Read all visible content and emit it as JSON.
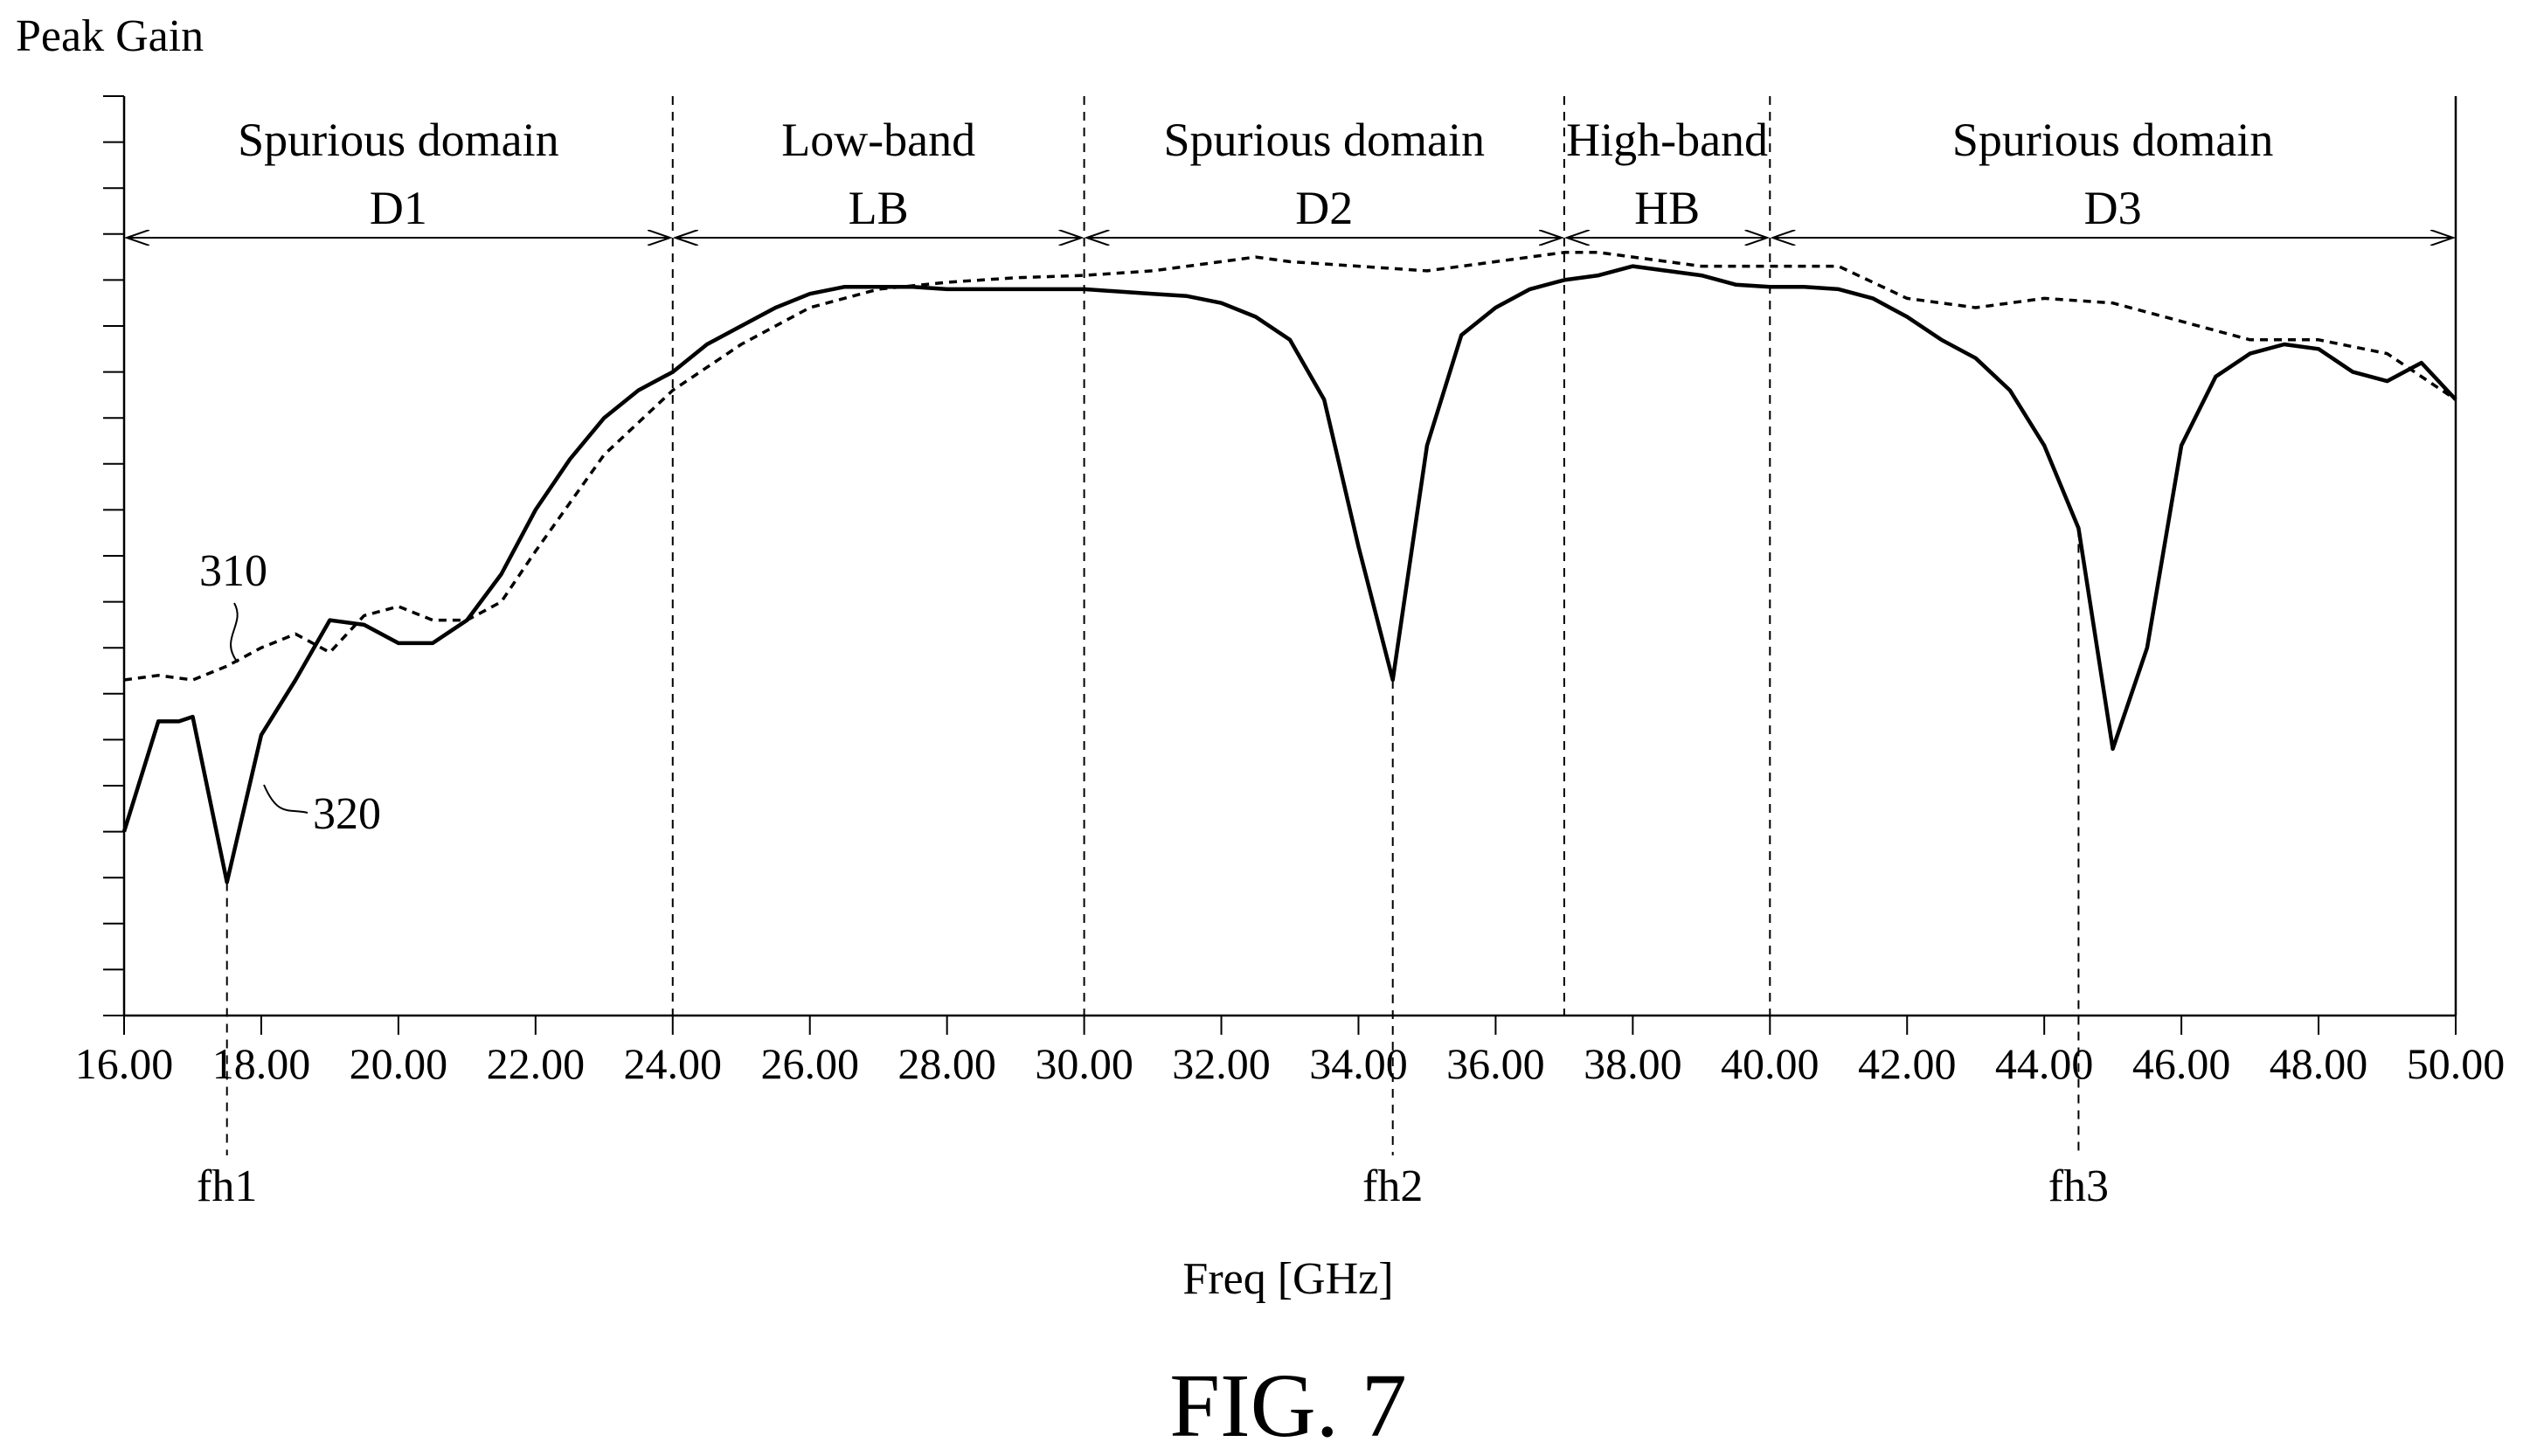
{
  "page_title": "",
  "figure_label": "FIG. 7",
  "chart_data": {
    "type": "line",
    "ylabel": "Peak Gain",
    "xlabel": "Freq [GHz]",
    "xlim": [
      16,
      50
    ],
    "ylim": [
      0,
      20
    ],
    "grid": false,
    "x_ticks": [
      16,
      18,
      20,
      22,
      24,
      26,
      28,
      30,
      32,
      34,
      36,
      38,
      40,
      42,
      44,
      46,
      48,
      50
    ],
    "x_tick_labels": [
      "16.00",
      "18.00",
      "20.00",
      "22.00",
      "24.00",
      "26.00",
      "28.00",
      "30.00",
      "32.00",
      "34.00",
      "36.00",
      "38.00",
      "40.00",
      "42.00",
      "44.00",
      "46.00",
      "48.00",
      "50.00"
    ],
    "y_minor_tick_count": 21,
    "regions": [
      {
        "name": "Spurious domain",
        "code": "D1",
        "x_start": 16,
        "x_end": 24
      },
      {
        "name": "Low-band",
        "code": "LB",
        "x_start": 24,
        "x_end": 30
      },
      {
        "name": "Spurious domain",
        "code": "D2",
        "x_start": 30,
        "x_end": 37
      },
      {
        "name": "High-band",
        "code": "HB",
        "x_start": 37,
        "x_end": 40
      },
      {
        "name": "Spurious domain",
        "code": "D3",
        "x_start": 40,
        "x_end": 50
      }
    ],
    "region_boundaries": [
      24,
      30,
      37,
      40
    ],
    "markers": [
      {
        "label": "fh1",
        "x": 17.5
      },
      {
        "label": "fh2",
        "x": 34.5
      },
      {
        "label": "fh3",
        "x": 44.5
      }
    ],
    "series": [
      {
        "name": "310",
        "style": "dashed",
        "x": [
          16,
          16.5,
          17,
          17.5,
          18,
          18.5,
          19,
          19.5,
          20,
          20.5,
          21,
          21.5,
          22,
          23,
          24,
          25,
          26,
          27,
          28,
          29,
          30,
          31,
          32,
          32.5,
          33,
          34,
          35,
          36,
          37,
          37.5,
          38,
          39,
          40,
          41,
          42,
          43,
          44,
          45,
          46,
          47,
          48,
          49,
          50
        ],
        "y": [
          7.3,
          7.4,
          7.3,
          7.6,
          8.0,
          8.3,
          7.9,
          8.7,
          8.9,
          8.6,
          8.6,
          9.0,
          10.1,
          12.2,
          13.6,
          14.6,
          15.4,
          15.8,
          15.95,
          16.05,
          16.1,
          16.2,
          16.4,
          16.5,
          16.4,
          16.3,
          16.2,
          16.4,
          16.6,
          16.6,
          16.5,
          16.3,
          16.3,
          16.3,
          15.6,
          15.4,
          15.6,
          15.5,
          15.1,
          14.7,
          14.7,
          14.4,
          13.4
        ]
      },
      {
        "name": "320",
        "style": "solid",
        "x": [
          16,
          16.5,
          16.8,
          17,
          17.5,
          18,
          18.5,
          19,
          19.5,
          20,
          20.5,
          21,
          21.5,
          22,
          22.5,
          23,
          23.5,
          24,
          24.5,
          25,
          25.5,
          26,
          26.5,
          27,
          27.5,
          28,
          29,
          30,
          31,
          31.5,
          32,
          32.5,
          33,
          33.5,
          34,
          34.5,
          35,
          35.5,
          36,
          36.5,
          37,
          37.5,
          38,
          38.5,
          39,
          39.5,
          40,
          40.5,
          41,
          41.5,
          42,
          42.5,
          43,
          43.5,
          44,
          44.5,
          45,
          45.5,
          46,
          46.5,
          47,
          47.5,
          48,
          48.5,
          49,
          49.5,
          50
        ],
        "y": [
          4.0,
          6.4,
          6.4,
          6.5,
          2.9,
          6.1,
          7.3,
          8.6,
          8.5,
          8.1,
          8.1,
          8.6,
          9.6,
          11.0,
          12.1,
          13.0,
          13.6,
          14.0,
          14.6,
          15.0,
          15.4,
          15.7,
          15.85,
          15.85,
          15.85,
          15.8,
          15.8,
          15.8,
          15.7,
          15.65,
          15.5,
          15.2,
          14.7,
          13.4,
          10.2,
          7.3,
          12.4,
          14.8,
          15.4,
          15.8,
          16.0,
          16.1,
          16.3,
          16.2,
          16.1,
          15.9,
          15.85,
          15.85,
          15.8,
          15.6,
          15.2,
          14.7,
          14.3,
          13.6,
          12.4,
          10.6,
          5.8,
          8.0,
          12.4,
          13.9,
          14.4,
          14.6,
          14.5,
          14.0,
          13.8,
          14.2,
          13.4
        ]
      }
    ]
  }
}
